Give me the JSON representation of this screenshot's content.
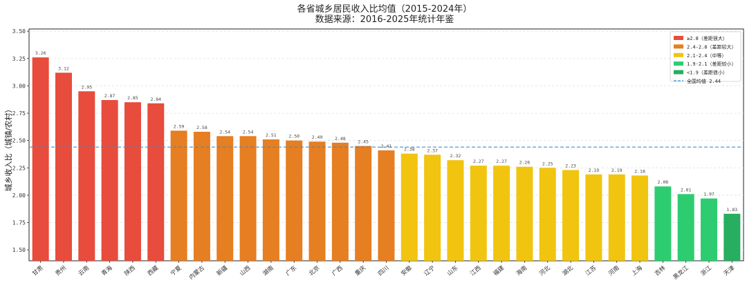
{
  "chart_data": {
    "type": "bar",
    "title": "各省城乡居民收入比均值（2015-2024年）",
    "subtitle": "数据来源：2016-2025年统计年鉴",
    "xlabel": "",
    "ylabel": "城乡收入比（城镇/农村）",
    "ylim": [
      1.4,
      3.52
    ],
    "yticks": [
      "1.50",
      "1.75",
      "2.00",
      "2.25",
      "2.50",
      "2.75",
      "3.00",
      "3.25",
      "3.50"
    ],
    "categories": [
      "甘肃",
      "贵州",
      "云南",
      "青海",
      "陕西",
      "西藏",
      "宁夏",
      "内蒙古",
      "新疆",
      "山西",
      "湖南",
      "广东",
      "北京",
      "广西",
      "重庆",
      "四川",
      "安徽",
      "辽宁",
      "山东",
      "江西",
      "福建",
      "海南",
      "河北",
      "湖北",
      "江苏",
      "河南",
      "上海",
      "吉林",
      "黑龙江",
      "浙江",
      "天津"
    ],
    "values": [
      3.26,
      3.12,
      2.95,
      2.87,
      2.85,
      2.84,
      2.59,
      2.58,
      2.54,
      2.54,
      2.51,
      2.5,
      2.49,
      2.48,
      2.45,
      2.41,
      2.38,
      2.37,
      2.32,
      2.27,
      2.27,
      2.26,
      2.25,
      2.23,
      2.19,
      2.19,
      2.18,
      2.08,
      2.01,
      1.97,
      1.83
    ],
    "value_labels": [
      "3.26",
      "3.12",
      "2.95",
      "2.87",
      "2.85",
      "2.84",
      "2.59",
      "2.58",
      "2.54",
      "2.54",
      "2.51",
      "2.50",
      "2.49",
      "2.48",
      "2.45",
      "2.41",
      "2.38",
      "2.37",
      "2.32",
      "2.27",
      "2.27",
      "2.26",
      "2.25",
      "2.23",
      "2.19",
      "2.19",
      "2.18",
      "2.08",
      "2.01",
      "1.97",
      "1.83"
    ],
    "groups": [
      {
        "label": "≥2.8（差距很大）",
        "color": "#e74c3c",
        "min": 2.8
      },
      {
        "label": "2.4-2.8（差距较大）",
        "color": "#e67e22",
        "min": 2.4
      },
      {
        "label": "2.1-2.4（中等）",
        "color": "#f1c40f",
        "min": 2.1
      },
      {
        "label": "1.9-2.1（差距较小）",
        "color": "#2ecc71",
        "min": 1.9
      },
      {
        "label": "<1.9（差距很小）",
        "color": "#27ae60",
        "min": 0
      }
    ],
    "reference_line": {
      "label": "全国均值 2.44",
      "value": 2.44,
      "color": "#3b8fd0"
    },
    "grid": "horizontal",
    "legend_position": "top-right"
  }
}
